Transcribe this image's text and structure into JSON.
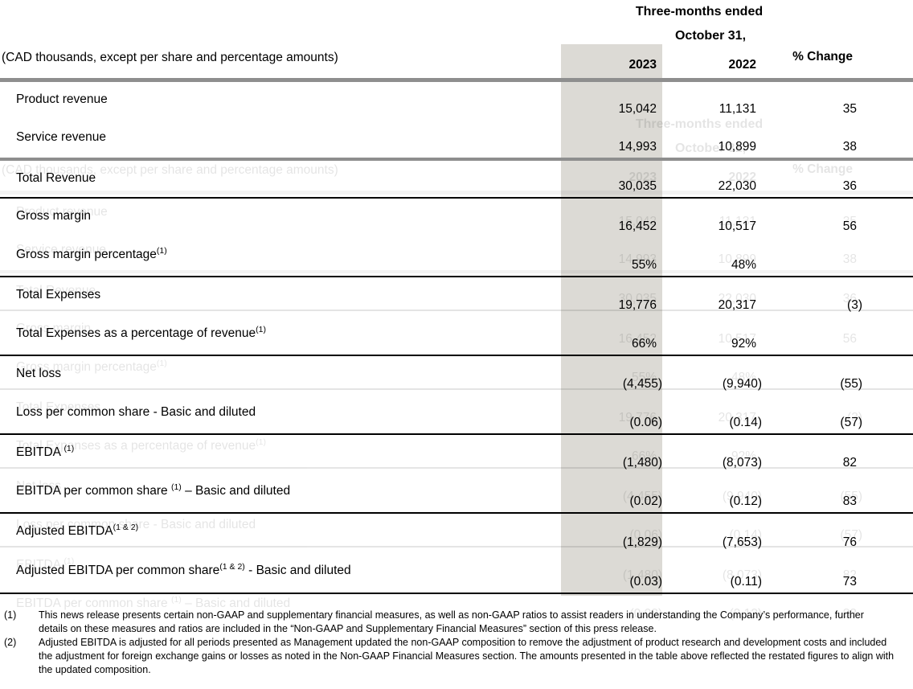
{
  "header": {
    "period_line1": "Three-months ended",
    "period_line2": "October 31,",
    "units_note": "(CAD thousands, except per share and percentage amounts)",
    "col_2023": "2023",
    "col_2022": "2022",
    "col_change": "% Change"
  },
  "colors": {
    "column_highlight": "#dcdad5",
    "rule_gray": "#8e8e8e",
    "rule_black": "#000000",
    "text": "#000000"
  },
  "groups": [
    {
      "rows": [
        {
          "label": "Product revenue",
          "sup": "",
          "label2": "",
          "y2023": "15,042",
          "y2022": "11,131",
          "change": "35"
        },
        {
          "label": "Service revenue",
          "sup": "",
          "label2": "",
          "y2023": "14,993",
          "y2022": "10,899",
          "change": "38"
        }
      ]
    },
    {
      "rows": [
        {
          "label": "Total Revenue",
          "sup": "",
          "label2": "",
          "y2023": "30,035",
          "y2022": "22,030",
          "change": "36"
        }
      ]
    },
    {
      "rows": [
        {
          "label": "Gross margin",
          "sup": "",
          "label2": "",
          "y2023": "16,452",
          "y2022": "10,517",
          "change": "56"
        },
        {
          "label": "Gross margin percentage",
          "sup": "(1)",
          "label2": "",
          "y2023": "55%",
          "y2022": "48%",
          "change": ""
        }
      ]
    },
    {
      "rows": [
        {
          "label": "Total Expenses",
          "sup": "",
          "label2": "",
          "y2023": "19,776",
          "y2022": "20,317",
          "change": "(3)"
        },
        {
          "label": "Total Expenses as a percentage of revenue",
          "sup": "(1)",
          "label2": "",
          "y2023": "66%",
          "y2022": "92%",
          "change": ""
        }
      ]
    },
    {
      "rows": [
        {
          "label": "Net loss",
          "sup": "",
          "label2": "",
          "y2023": "(4,455)",
          "y2022": "(9,940)",
          "change": "(55)"
        },
        {
          "label": "Loss per common share - Basic and diluted",
          "sup": "",
          "label2": "",
          "y2023": "(0.06)",
          "y2022": "(0.14)",
          "change": "(57)"
        }
      ]
    },
    {
      "rows": [
        {
          "label": "EBITDA ",
          "sup": "(1)",
          "label2": "",
          "y2023": "(1,480)",
          "y2022": "(8,073)",
          "change": "82"
        },
        {
          "label": "EBITDA per common share ",
          "sup": "(1)",
          "label2": " – Basic and diluted",
          "y2023": "(0.02)",
          "y2022": "(0.12)",
          "change": "83"
        }
      ]
    },
    {
      "rows": [
        {
          "label": "Adjusted EBITDA",
          "sup": "(1 & 2)",
          "label2": "",
          "y2023": "(1,829)",
          "y2022": "(7,653)",
          "change": "76"
        },
        {
          "label": "Adjusted EBITDA per common share",
          "sup": "(1 & 2)",
          "label2": " - Basic and diluted",
          "y2023": "(0.03)",
          "y2022": "(0.11)",
          "change": "73"
        }
      ]
    }
  ],
  "footnotes": [
    {
      "marker": "(1)",
      "text": "This news release presents certain non-GAAP and supplementary financial measures, as well as non-GAAP ratios to assist readers in understanding the Company’s performance, further details on these measures and ratios are included in the “Non-GAAP and Supplementary Financial Measures” section of this press release."
    },
    {
      "marker": "(2)",
      "text": "Adjusted EBITDA is adjusted for all periods presented as Management updated the non-GAAP composition to remove the adjustment of product research and development costs and included the adjustment for foreign exchange gains or losses as noted in the Non-GAAP Financial Measures section. The amounts presented in the table above reflected the restated figures to align with the updated composition."
    }
  ]
}
